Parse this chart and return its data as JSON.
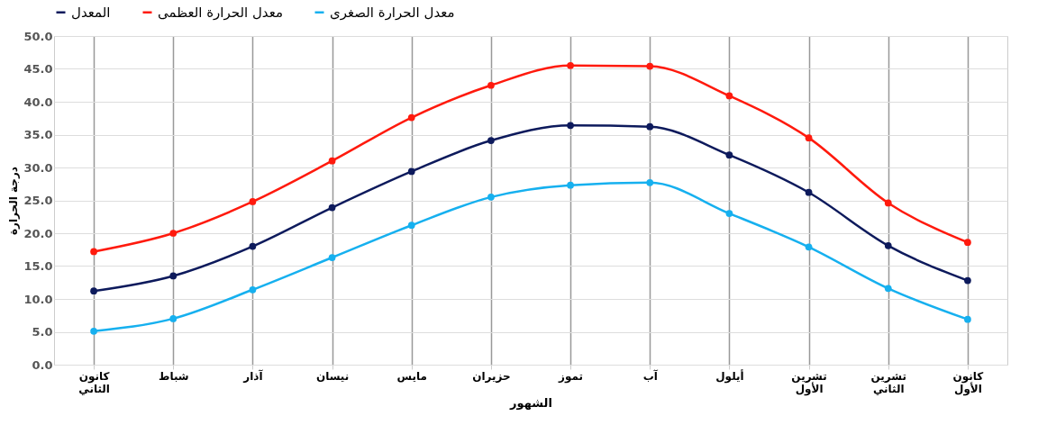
{
  "chart_data": {
    "type": "line",
    "xlabel": "الشهور",
    "ylabel": "درجة الحرارة",
    "categories": [
      "كانون الثاني",
      "شباط",
      "آذار",
      "نيسان",
      "مايس",
      "حزيران",
      "تموز",
      "آب",
      "أيلول",
      "تشرين الأول",
      "تشرين الثاني",
      "كانون الأول"
    ],
    "series": [
      {
        "name": "المعدل",
        "color": "#0d1a5c",
        "values": [
          11.2,
          13.5,
          18.0,
          23.9,
          29.4,
          34.1,
          36.4,
          36.2,
          31.9,
          26.2,
          18.1,
          12.8
        ]
      },
      {
        "name": "معدل الحرارة العظمى",
        "color": "#ff1a0d",
        "values": [
          17.2,
          20.0,
          24.8,
          31.0,
          37.6,
          42.5,
          45.5,
          45.4,
          40.9,
          34.5,
          24.6,
          18.6
        ]
      },
      {
        "name": "معدل الحرارة الصغرى",
        "color": "#16b0ef",
        "values": [
          5.1,
          7.0,
          11.4,
          16.3,
          21.2,
          25.5,
          27.3,
          27.7,
          23.0,
          17.9,
          11.6,
          6.9
        ]
      }
    ],
    "ylim": [
      0,
      50
    ],
    "yticks": [
      {
        "value": 0,
        "label": "0.0"
      },
      {
        "value": 5,
        "label": "5.0"
      },
      {
        "value": 10,
        "label": "10.0"
      },
      {
        "value": 15,
        "label": "15.0"
      },
      {
        "value": 20,
        "label": "20.0"
      },
      {
        "value": 25,
        "label": "25.0"
      },
      {
        "value": 30,
        "label": "30.0"
      },
      {
        "value": 35,
        "label": "35.0"
      },
      {
        "value": 40,
        "label": "40.0"
      },
      {
        "value": 45,
        "label": "45.0"
      },
      {
        "value": 50,
        "label": "50.0"
      }
    ],
    "grid": true,
    "legend": "top",
    "marker": "circle",
    "line_style": "solid"
  }
}
